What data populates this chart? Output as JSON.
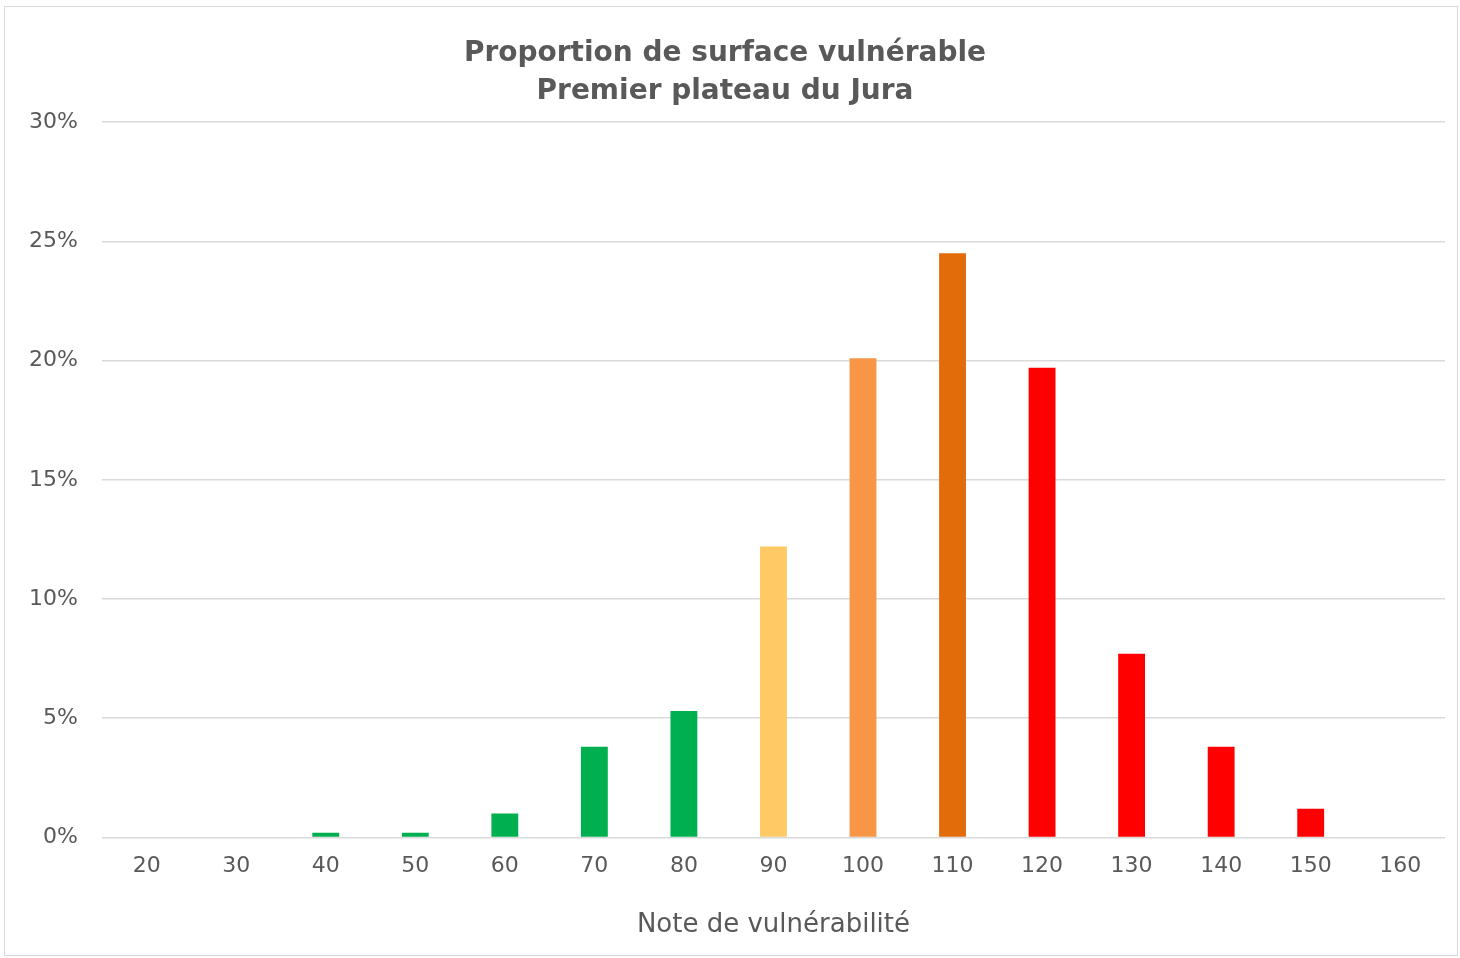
{
  "chart_data": {
    "type": "bar",
    "title": "Proportion de surface vulnérable",
    "subtitle": "Premier plateau du Jura",
    "xlabel": "Note de vulnérabilité",
    "categories": [
      "20",
      "30",
      "40",
      "50",
      "60",
      "70",
      "80",
      "90",
      "100",
      "110",
      "120",
      "130",
      "140",
      "150",
      "160"
    ],
    "values": [
      0,
      0,
      0.2,
      0.2,
      1.0,
      3.8,
      5.3,
      12.2,
      20.1,
      24.5,
      19.7,
      7.7,
      3.8,
      1.2,
      0
    ],
    "colors": [
      "#00b050",
      "#00b050",
      "#00b050",
      "#00b050",
      "#00b050",
      "#00b050",
      "#00b050",
      "#ffc966",
      "#f79646",
      "#e36c0a",
      "#ff0000",
      "#ff0000",
      "#ff0000",
      "#ff0000",
      "#ff0000"
    ],
    "ylim": [
      0,
      30
    ],
    "yticks": [
      {
        "value": 0,
        "label": "0%"
      },
      {
        "value": 5,
        "label": "5%"
      },
      {
        "value": 10,
        "label": "10%"
      },
      {
        "value": 15,
        "label": "15%"
      },
      {
        "value": 20,
        "label": "20%"
      },
      {
        "value": 25,
        "label": "25%"
      },
      {
        "value": 30,
        "label": "30%"
      }
    ],
    "grid": "y",
    "legend": false
  }
}
